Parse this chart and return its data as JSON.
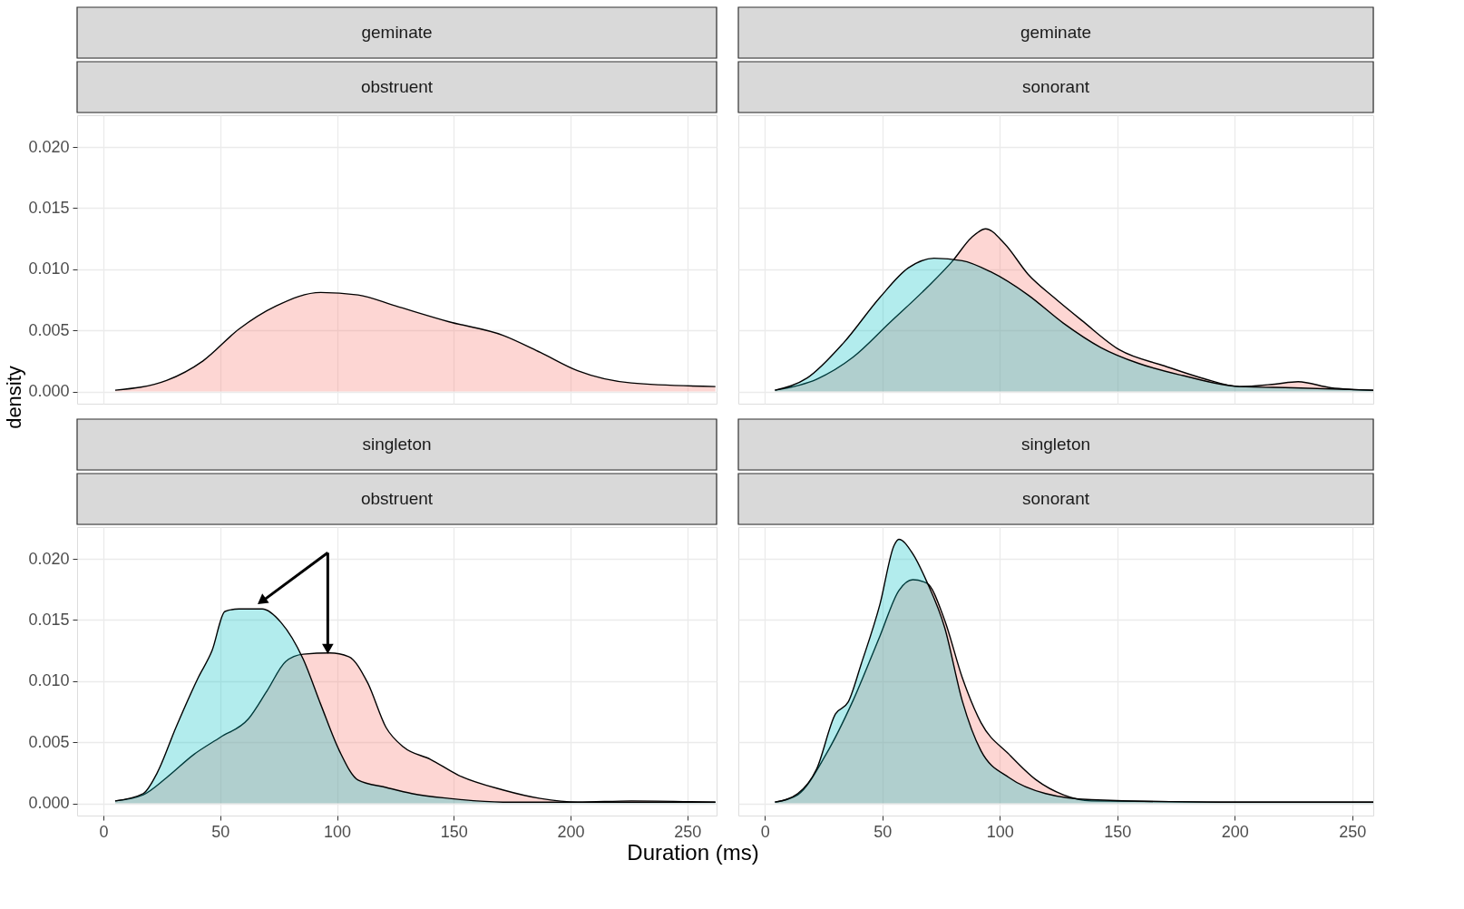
{
  "chart_data": [
    {
      "type": "area",
      "title": "geminate",
      "subtitle": "obstruent",
      "xlabel": "Duration (ms)",
      "ylabel": "density",
      "xlim": [
        -11.3,
        262.5
      ],
      "ylim": [
        -0.001,
        0.0226
      ],
      "xticks": [
        0,
        50,
        100,
        150,
        200,
        250
      ],
      "yticks": [
        {
          "value": 0,
          "label": "0.000"
        },
        {
          "value": 0.005,
          "label": "0.005"
        },
        {
          "value": 0.01,
          "label": "0.010"
        },
        {
          "value": 0.015,
          "label": "0.015"
        },
        {
          "value": 0.02,
          "label": "0.020"
        }
      ],
      "grid": true,
      "tick_labels": "y",
      "series": [
        {
          "color": "#f8766d",
          "x": [
            5,
            27,
            42.6,
            58,
            74,
            93,
            109,
            125,
            148,
            171,
            187,
            203,
            226,
            262
          ],
          "values": [
            0.0001,
            0.0009,
            0.0025,
            0.0051,
            0.007,
            0.0081,
            0.0079,
            0.007,
            0.0057,
            0.0046,
            0.0032,
            0.0017,
            0.0007,
            0.0004
          ]
        }
      ]
    },
    {
      "type": "area",
      "title": "geminate",
      "subtitle": "sonorant",
      "xlim": [
        -11.3,
        259
      ],
      "ylim": [
        -0.001,
        0.0226
      ],
      "xticks": [
        0,
        50,
        100,
        150,
        200,
        250
      ],
      "yticks": [
        0,
        0.005,
        0.01,
        0.015,
        0.02
      ],
      "grid": true,
      "tick_labels": false,
      "series": [
        {
          "color": "#f8766d",
          "x": [
            4.3,
            22,
            37.5,
            53,
            69,
            80,
            88,
            94,
            102,
            112,
            123,
            135,
            151,
            170,
            186,
            202,
            217,
            227,
            241,
            259
          ],
          "values": [
            0.0001,
            0.001,
            0.0028,
            0.0056,
            0.0085,
            0.0107,
            0.0126,
            0.0133,
            0.0121,
            0.0096,
            0.0077,
            0.0058,
            0.0034,
            0.0021,
            0.0011,
            0.0004,
            0.0006,
            0.0008,
            0.0003,
            0.0001
          ]
        },
        {
          "color": "#00bfc4",
          "x": [
            4.3,
            18,
            33.6,
            49,
            61,
            72,
            84,
            96,
            112,
            127,
            143,
            159,
            178,
            202,
            225,
            259
          ],
          "values": [
            0.0001,
            0.0011,
            0.004,
            0.0077,
            0.0101,
            0.0109,
            0.0107,
            0.0098,
            0.0079,
            0.0056,
            0.0036,
            0.0023,
            0.0013,
            0.0004,
            0.0003,
            0.0001
          ]
        }
      ]
    },
    {
      "type": "area",
      "title": "singleton",
      "subtitle": "obstruent",
      "xlim": [
        -11.3,
        262.5
      ],
      "ylim": [
        -0.001,
        0.0226
      ],
      "xticks": [
        0,
        50,
        100,
        150,
        200,
        250
      ],
      "yticks": [
        {
          "value": 0,
          "label": "0.000"
        },
        {
          "value": 0.005,
          "label": "0.005"
        },
        {
          "value": 0.01,
          "label": "0.010"
        },
        {
          "value": 0.015,
          "label": "0.015"
        },
        {
          "value": 0.02,
          "label": "0.020"
        }
      ],
      "grid": true,
      "series": [
        {
          "color": "#f8766d",
          "x": [
            5,
            17,
            27,
            38.7,
            50,
            62,
            70,
            78,
            85.5,
            97,
            105,
            113,
            121,
            128.5,
            140,
            152,
            171,
            187,
            203,
            226,
            262
          ],
          "values": [
            0.0002,
            0.0007,
            0.0021,
            0.004,
            0.0054,
            0.0069,
            0.0092,
            0.0116,
            0.0122,
            0.0123,
            0.012,
            0.0099,
            0.0062,
            0.0046,
            0.0036,
            0.0023,
            0.0011,
            0.0004,
            0.0001,
            0.0002,
            0.0001
          ]
        },
        {
          "color": "#00bfc4",
          "x": [
            5,
            17,
            23,
            31,
            40.6,
            46.5,
            52,
            58,
            68,
            76,
            85.5,
            93,
            101,
            109,
            121,
            132,
            148,
            171,
            203,
            262
          ],
          "values": [
            0.0002,
            0.0008,
            0.0025,
            0.0062,
            0.0103,
            0.0125,
            0.0157,
            0.0159,
            0.0159,
            0.0148,
            0.0118,
            0.0081,
            0.0043,
            0.0019,
            0.0013,
            0.0008,
            0.0004,
            0.0001,
            0.0001,
            0.0001
          ]
        }
      ]
    },
    {
      "type": "area",
      "title": "singleton",
      "subtitle": "sonorant",
      "xlim": [
        -11.3,
        259
      ],
      "ylim": [
        -0.001,
        0.0226
      ],
      "xticks": [
        0,
        50,
        100,
        150,
        200,
        250
      ],
      "yticks": [
        0,
        0.005,
        0.01,
        0.015,
        0.02
      ],
      "grid": true,
      "tick_labels": "x",
      "series": [
        {
          "color": "#f8766d",
          "x": [
            4.3,
            14,
            26,
            37.5,
            49,
            57,
            63,
            69,
            76.5,
            84,
            92,
            104,
            115.6,
            127,
            139,
            194,
            259
          ],
          "values": [
            0.0001,
            0.0007,
            0.004,
            0.0084,
            0.0137,
            0.0174,
            0.0183,
            0.018,
            0.015,
            0.0103,
            0.0066,
            0.004,
            0.0019,
            0.0007,
            0.0002,
            0.0001,
            0.0001
          ]
        },
        {
          "color": "#00bfc4",
          "x": [
            4.3,
            14,
            22,
            30,
            35.5,
            41,
            49,
            55,
            57,
            63,
            69,
            76.5,
            84,
            92,
            104,
            119.5,
            139,
            194,
            259
          ],
          "values": [
            0.0001,
            0.0008,
            0.0028,
            0.0073,
            0.0083,
            0.0114,
            0.0163,
            0.0211,
            0.0216,
            0.0204,
            0.0181,
            0.0144,
            0.0084,
            0.0043,
            0.0021,
            0.0008,
            0.0003,
            0.0001,
            0.0001
          ]
        }
      ]
    }
  ]
}
